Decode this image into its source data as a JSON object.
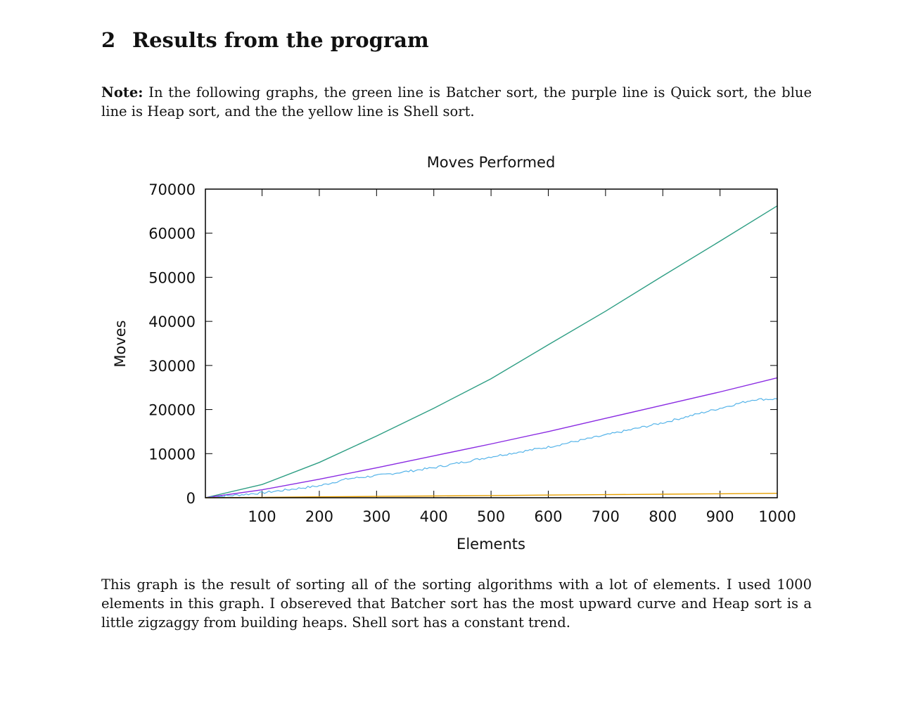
{
  "section": {
    "number": "2",
    "title": "Results from the program"
  },
  "note": {
    "label": "Note:",
    "text": "In the following graphs, the green line is Batcher sort, the purple line is Quick sort, the blue line is Heap sort, and the the yellow line is Shell sort."
  },
  "body_text": "This graph is the result of sorting all of the sorting algorithms with a lot of elements. I used 1000 elements in this graph. I obsereved that Batcher sort has the most upward curve and Heap sort is a little zigzaggy from building heaps. Shell sort has a constant trend.",
  "chart_data": {
    "type": "line",
    "title": "Moves Performed",
    "xlabel": "Elements",
    "ylabel": "Moves",
    "xlim": [
      1,
      1000
    ],
    "ylim": [
      0,
      70000
    ],
    "xticks": [
      100,
      200,
      300,
      400,
      500,
      600,
      700,
      800,
      900,
      1000
    ],
    "yticks": [
      0,
      10000,
      20000,
      30000,
      40000,
      50000,
      60000,
      70000
    ],
    "grid": false,
    "series": [
      {
        "color": "#2e9e84",
        "x": [
          1,
          100,
          200,
          300,
          400,
          500,
          600,
          700,
          800,
          900,
          1000
        ],
        "y": [
          0,
          3000,
          8000,
          14000,
          20300,
          27000,
          34700,
          42300,
          50300,
          58200,
          66200
        ]
      },
      {
        "color": "#8a2be2",
        "x": [
          1,
          100,
          200,
          300,
          400,
          500,
          600,
          700,
          800,
          900,
          1000
        ],
        "y": [
          0,
          1800,
          4200,
          6800,
          9500,
          12200,
          15000,
          18000,
          21000,
          24000,
          27200
        ]
      },
      {
        "color": "#56b4e9",
        "noisy": true,
        "x": [
          1,
          100,
          200,
          250,
          300,
          400,
          500,
          600,
          700,
          800,
          900,
          960,
          1000
        ],
        "y": [
          0,
          1100,
          2700,
          4300,
          5000,
          6800,
          9300,
          11500,
          14200,
          17000,
          20300,
          22300,
          22400
        ]
      },
      {
        "color": "#e69f00",
        "x": [
          1,
          100,
          200,
          300,
          400,
          500,
          600,
          700,
          800,
          900,
          1000
        ],
        "y": [
          0,
          100,
          200,
          300,
          400,
          500,
          600,
          700,
          800,
          900,
          1000
        ]
      }
    ]
  }
}
